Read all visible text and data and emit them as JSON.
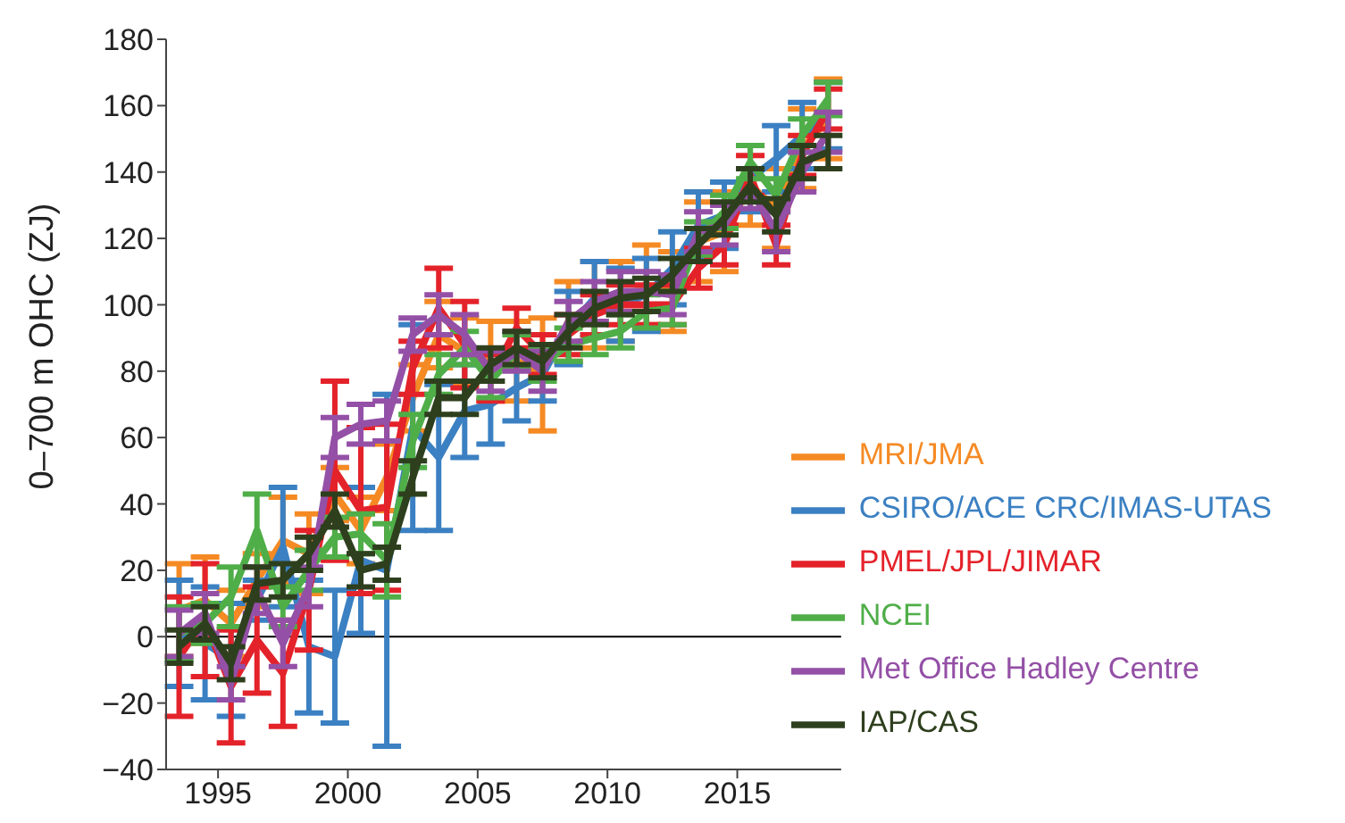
{
  "chart_data": {
    "type": "line",
    "ylabel": "0–700 m OHC (ZJ)",
    "x": [
      1993.5,
      1994.5,
      1995.5,
      1996.5,
      1997.5,
      1998.5,
      1999.5,
      2000.5,
      2001.5,
      2002.5,
      2003.5,
      2004.5,
      2005.5,
      2006.5,
      2007.5,
      2008.5,
      2009.5,
      2010.5,
      2011.5,
      2012.5,
      2013.5,
      2014.5,
      2015.5,
      2016.5,
      2017.5,
      2018.5
    ],
    "xlim": [
      1993,
      2019
    ],
    "xticks": [
      1995,
      2000,
      2005,
      2010,
      2015
    ],
    "ylim": [
      -40,
      180
    ],
    "yticks": [
      -40,
      -20,
      0,
      20,
      40,
      60,
      80,
      100,
      120,
      140,
      160,
      180
    ],
    "grid": false,
    "legend": "bottom right",
    "line_style": "solid",
    "ref_lines": [
      {
        "axis": "y",
        "value": 0,
        "color": "#000000"
      }
    ],
    "series": [
      {
        "name": "MRI/JMA",
        "color": "#f58a24",
        "values": [
          8,
          11,
          4,
          17,
          29,
          25,
          43,
          32,
          48,
          72,
          91,
          86,
          83,
          83,
          79,
          95,
          100,
          101,
          106,
          104,
          119,
          122,
          136,
          129,
          147,
          156
        ],
        "errors": [
          14,
          13,
          10,
          8,
          13,
          12,
          8,
          10,
          10,
          10,
          10,
          10,
          12,
          12,
          17,
          12,
          13,
          12,
          12,
          12,
          12,
          12,
          12,
          12,
          12,
          12
        ]
      },
      {
        "name": "CSIRO/ACE CRC/IMAS-UTAS",
        "color": "#3b80c2",
        "values": [
          1,
          -2,
          -7,
          11,
          27,
          -3,
          -6,
          23,
          20,
          63,
          54,
          68,
          70,
          75,
          79,
          93,
          102,
          100,
          103,
          111,
          124,
          127,
          138,
          144,
          151,
          157
        ],
        "errors": [
          16,
          17,
          17,
          6,
          18,
          20,
          20,
          22,
          53,
          31,
          22,
          14,
          12,
          10,
          8,
          11,
          11,
          11,
          11,
          11,
          10,
          10,
          10,
          10,
          10,
          10
        ]
      },
      {
        "name": "PMEL/JPL/JIMAR",
        "color": "#e4222a",
        "values": [
          -6,
          5,
          -15,
          -1,
          -11,
          14,
          50,
          38,
          39,
          81,
          99,
          88,
          78,
          93,
          85,
          91,
          97,
          100,
          100,
          100,
          111,
          118,
          139,
          118,
          145,
          159
        ],
        "errors": [
          18,
          17,
          17,
          16,
          16,
          18,
          27,
          25,
          25,
          8,
          12,
          13,
          7,
          6,
          6,
          6,
          6,
          6,
          6,
          6,
          6,
          6,
          6,
          6,
          6,
          6
        ]
      },
      {
        "name": "NCEI",
        "color": "#4fae48",
        "values": [
          1,
          4,
          12,
          32,
          9,
          20,
          30,
          31,
          23,
          59,
          79,
          87,
          77,
          86,
          82,
          88,
          90,
          92,
          98,
          99,
          120,
          128,
          143,
          133,
          151,
          162
        ],
        "errors": [
          8,
          6,
          9,
          11,
          6,
          6,
          6,
          6,
          11,
          8,
          6,
          5,
          5,
          5,
          5,
          5,
          5,
          5,
          5,
          5,
          5,
          5,
          5,
          5,
          5,
          5
        ]
      },
      {
        "name": "Met Office Hadley Centre",
        "color": "#9450a6",
        "values": [
          1,
          7,
          -14,
          14,
          -2,
          15,
          60,
          64,
          65,
          91,
          97,
          91,
          80,
          86,
          80,
          95,
          101,
          104,
          104,
          103,
          122,
          124,
          135,
          122,
          140,
          152
        ],
        "errors": [
          7,
          6,
          5,
          7,
          7,
          6,
          6,
          6,
          6,
          5,
          6,
          6,
          6,
          6,
          6,
          6,
          6,
          6,
          6,
          6,
          6,
          6,
          6,
          6,
          6,
          6
        ]
      },
      {
        "name": "IAP/CAS",
        "color": "#2e3f1e",
        "values": [
          -3,
          4,
          -8,
          16,
          17,
          25,
          38,
          20,
          22,
          48,
          72,
          72,
          82,
          87,
          83,
          92,
          99,
          102,
          103,
          109,
          118,
          126,
          136,
          127,
          143,
          146
        ],
        "errors": [
          5,
          5,
          5,
          5,
          5,
          5,
          5,
          5,
          5,
          5,
          5,
          5,
          5,
          5,
          5,
          5,
          5,
          5,
          5,
          5,
          5,
          5,
          5,
          5,
          5,
          5
        ]
      }
    ]
  }
}
